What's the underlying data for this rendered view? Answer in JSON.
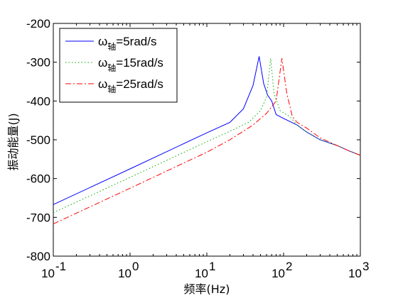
{
  "chart_data": {
    "type": "line",
    "xlabel": "频率(Hz)",
    "ylabel": "振动能量(J)",
    "xscale": "log",
    "xlim": [
      0.1,
      1000
    ],
    "ylim": [
      -800,
      -200
    ],
    "x_ticks": [
      0.1,
      1,
      10,
      100,
      1000
    ],
    "x_tick_labels": [
      {
        "base": "10",
        "exp": "-1"
      },
      {
        "base": "10",
        "exp": "0"
      },
      {
        "base": "10",
        "exp": "1"
      },
      {
        "base": "10",
        "exp": "2"
      },
      {
        "base": "10",
        "exp": "3"
      }
    ],
    "y_ticks": [
      -800,
      -700,
      -600,
      -500,
      -400,
      -300,
      -200
    ],
    "y_tick_labels": [
      "-800",
      "-700",
      "-600",
      "-500",
      "-400",
      "-300",
      "-200"
    ],
    "grid": false,
    "legend_position": "top-left",
    "series": [
      {
        "name_symbol": "ω",
        "name_sub": "轴",
        "name_suffix": "=5rad/s",
        "color": "#0000ff",
        "style": "solid",
        "x": [
          0.1,
          1,
          10,
          20,
          30,
          40,
          48,
          55,
          62,
          70,
          80,
          100,
          150,
          200,
          300,
          500,
          700,
          1000
        ],
        "y": [
          -667,
          -575,
          -482,
          -455,
          -420,
          -360,
          -285,
          -355,
          -385,
          -400,
          -435,
          -445,
          -462,
          -480,
          -500,
          -515,
          -528,
          -540
        ]
      },
      {
        "name_symbol": "ω",
        "name_sub": "轴",
        "name_suffix": "=15rad/s",
        "color": "#00aa00",
        "style": "dotted",
        "x": [
          0.1,
          1,
          10,
          20,
          35,
          50,
          60,
          68,
          75,
          90,
          120,
          150,
          200,
          300,
          500,
          700,
          1000
        ],
        "y": [
          -688,
          -597,
          -505,
          -478,
          -455,
          -425,
          -390,
          -290,
          -380,
          -425,
          -440,
          -462,
          -480,
          -500,
          -515,
          -528,
          -540
        ]
      },
      {
        "name_symbol": "ω",
        "name_sub": "轴",
        "name_suffix": "=25rad/s",
        "color": "#ff0000",
        "style": "dashdot",
        "x": [
          0.1,
          1,
          10,
          20,
          40,
          60,
          80,
          95,
          110,
          130,
          150,
          200,
          300,
          500,
          700,
          1000
        ],
        "y": [
          -717,
          -625,
          -532,
          -500,
          -462,
          -432,
          -400,
          -290,
          -380,
          -440,
          -455,
          -470,
          -495,
          -515,
          -528,
          -540
        ]
      }
    ]
  }
}
